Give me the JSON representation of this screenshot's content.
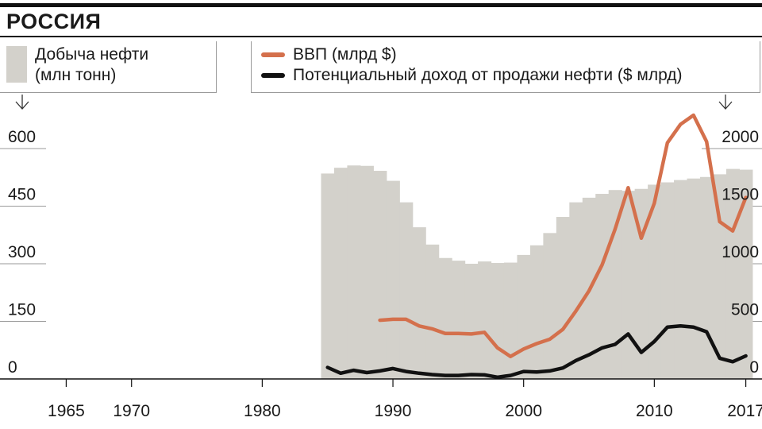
{
  "title": "РОССИЯ",
  "legend": {
    "oil_production_line1": "Добыча нефти",
    "oil_production_line2": "(млн тонн)",
    "gdp": "ВВП (млрд $)",
    "oil_revenue": "Потенциальный доход от продажи нефти ($ млрд)"
  },
  "colors": {
    "gdp": "#d4704c",
    "oil_revenue": "#111111",
    "oil_production": "#d3d1cb"
  },
  "chart_data": {
    "type": "bar+line",
    "x_ticks": [
      "1965",
      "1970",
      "1980",
      "1990",
      "2000",
      "2010",
      "2017"
    ],
    "y_left_ticks": [
      "0",
      "150",
      "300",
      "450",
      "600"
    ],
    "y_right_ticks": [
      "0",
      "500",
      "1000",
      "1500",
      "2000"
    ],
    "xlim": [
      1962,
      2020
    ],
    "ylim_left": [
      0,
      660
    ],
    "ylim_right": [
      0,
      2200
    ],
    "grid": "horizontal",
    "series": [
      {
        "name": "Добыча нефти (млн тонн)",
        "type": "bar",
        "axis": "left",
        "x": [
          1985,
          1986,
          1987,
          1988,
          1989,
          1990,
          1991,
          1992,
          1993,
          1994,
          1995,
          1996,
          1997,
          1998,
          1999,
          2000,
          2001,
          2002,
          2003,
          2004,
          2005,
          2006,
          2007,
          2008,
          2009,
          2010,
          2011,
          2012,
          2013,
          2014,
          2015,
          2016,
          2017
        ],
        "values": [
          535,
          550,
          556,
          555,
          542,
          516,
          460,
          395,
          350,
          315,
          308,
          300,
          306,
          302,
          303,
          323,
          348,
          380,
          422,
          460,
          472,
          482,
          492,
          490,
          495,
          506,
          512,
          518,
          522,
          526,
          533,
          547,
          545
        ]
      },
      {
        "name": "ВВП (млрд $)",
        "type": "line",
        "axis": "right",
        "x": [
          1989,
          1990,
          1991,
          1992,
          1993,
          1994,
          1995,
          1996,
          1997,
          1998,
          1999,
          2000,
          2001,
          2002,
          2003,
          2004,
          2005,
          2006,
          2007,
          2008,
          2009,
          2010,
          2011,
          2012,
          2013,
          2014,
          2015,
          2016,
          2017
        ],
        "values": [
          510,
          518,
          518,
          460,
          435,
          395,
          395,
          390,
          405,
          270,
          195,
          260,
          307,
          345,
          430,
          590,
          764,
          990,
          1300,
          1660,
          1222,
          1525,
          2050,
          2210,
          2290,
          2060,
          1365,
          1285,
          1575
        ]
      },
      {
        "name": "Потенциальный доход от продажи нефти ($ млрд)",
        "type": "line",
        "axis": "right",
        "x": [
          1985,
          1986,
          1987,
          1988,
          1989,
          1990,
          1991,
          1992,
          1993,
          1994,
          1995,
          1996,
          1997,
          1998,
          1999,
          2000,
          2001,
          2002,
          2003,
          2004,
          2005,
          2006,
          2007,
          2008,
          2009,
          2010,
          2011,
          2012,
          2013,
          2014,
          2015,
          2016,
          2017
        ],
        "values": [
          100,
          50,
          75,
          55,
          70,
          90,
          65,
          50,
          38,
          30,
          30,
          38,
          35,
          15,
          30,
          65,
          60,
          70,
          95,
          160,
          210,
          270,
          300,
          390,
          230,
          325,
          450,
          460,
          450,
          410,
          180,
          150,
          200
        ]
      }
    ]
  }
}
